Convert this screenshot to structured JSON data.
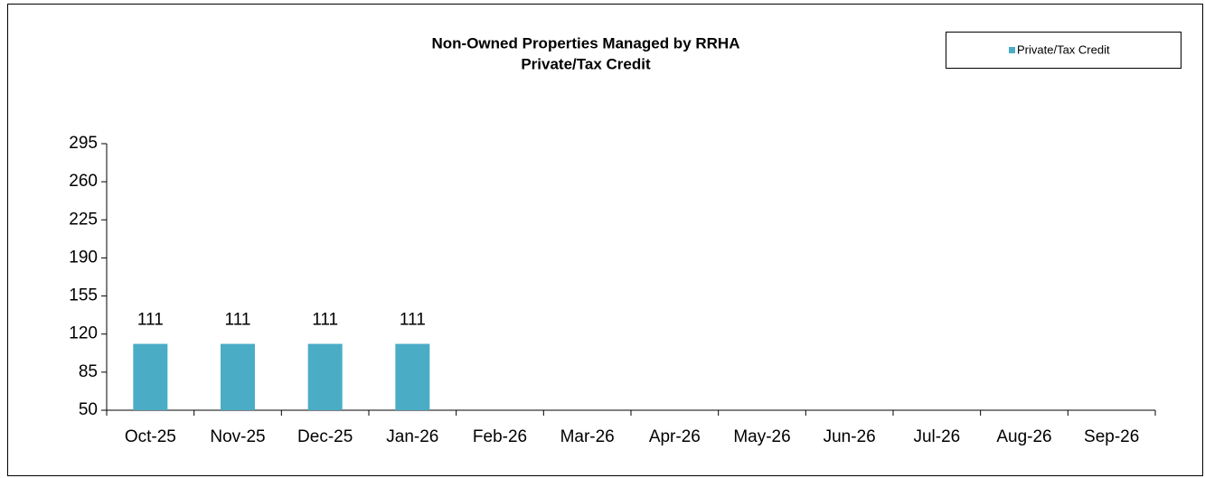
{
  "chart_data": {
    "type": "bar",
    "title": "Non-Owned Properties Managed by RRHA",
    "subtitle": "Private/Tax Credit",
    "categories": [
      "Oct-25",
      "Nov-25",
      "Dec-25",
      "Jan-26",
      "Feb-26",
      "Mar-26",
      "Apr-26",
      "May-26",
      "Jun-26",
      "Jul-26",
      "Aug-26",
      "Sep-26"
    ],
    "series": [
      {
        "name": "Private/Tax Credit",
        "color": "#4bacc6",
        "values": [
          111,
          111,
          111,
          111,
          null,
          null,
          null,
          null,
          null,
          null,
          null,
          null
        ]
      }
    ],
    "ylim": [
      50,
      295
    ],
    "yticks": [
      50,
      85,
      120,
      155,
      190,
      225,
      260,
      295
    ],
    "legend": "top-right",
    "data_labels": true
  }
}
